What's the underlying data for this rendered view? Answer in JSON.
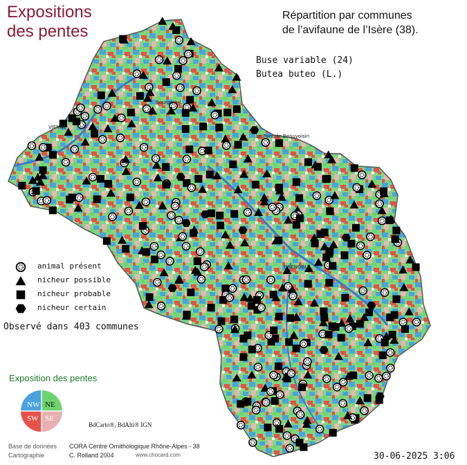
{
  "title_left": [
    "Expositions",
    "des pentes"
  ],
  "title_right": [
    "Répartition par communes",
    "de l’avifaune de l’Isère (38)."
  ],
  "species": {
    "common": "Buse variable  (24)",
    "latin": "Butea buteo (L.)"
  },
  "legend": [
    {
      "symbol": "circle-dotted",
      "label": "animal présent"
    },
    {
      "symbol": "triangle",
      "label": "nicheur possible"
    },
    {
      "symbol": "square",
      "label": "nicheur probable"
    },
    {
      "symbol": "hexagon",
      "label": "nicheur certain"
    }
  ],
  "observed_text": "Observé dans 403 communes",
  "exposition": {
    "title": "Exposition des pentes",
    "quadrants": [
      {
        "label": "NW",
        "color": "#4aa3e0"
      },
      {
        "label": "NE",
        "color": "#6fd36f"
      },
      {
        "label": "SW",
        "color": "#e8504a"
      },
      {
        "label": "SE",
        "color": "#e8b0b0"
      }
    ]
  },
  "credits": {
    "ign": "BdCarto®, BdAlti® IGN",
    "db_label": "Base de données",
    "db_value": "CORA Centre Ornithologique Rhône-Alpes - 38",
    "carto_label": "Cartographie",
    "carto_value": "C. Rolland 2004",
    "website": "www.chocard.com"
  },
  "datetime": "30-06-2025 3:06",
  "towns": [
    "VIENNE",
    "Le Pont de Beauvoisin",
    "GRENOBLE",
    "Bourgoin-J."
  ],
  "colors": {
    "title": "#8b1a3a",
    "outline": "#555555",
    "rivers": "#3b78c8"
  }
}
